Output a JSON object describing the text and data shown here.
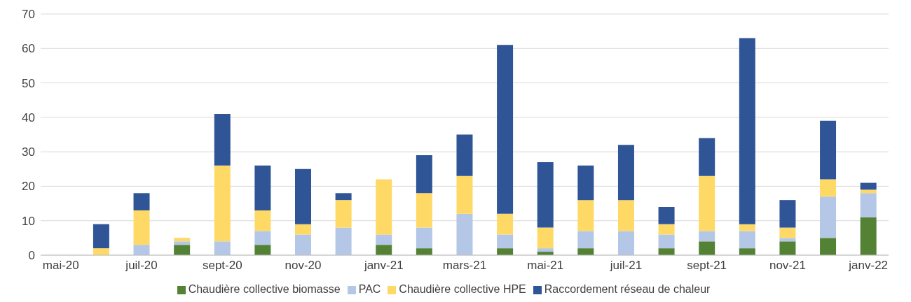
{
  "chart_data": {
    "type": "bar",
    "stacked": true,
    "categories": [
      "mai-20",
      null,
      "juil-20",
      null,
      "sept-20",
      null,
      "nov-20",
      null,
      "janv-21",
      null,
      "mars-21",
      null,
      "mai-21",
      null,
      "juil-21",
      null,
      "sept-21",
      null,
      "nov-21",
      null,
      "janv-22"
    ],
    "series": [
      {
        "name": "Chaudière collective biomasse",
        "color": "#548235",
        "values": [
          0,
          0,
          0,
          3,
          0,
          3,
          0,
          0,
          3,
          2,
          0,
          2,
          1,
          2,
          0,
          2,
          4,
          2,
          4,
          5,
          11
        ]
      },
      {
        "name": "PAC",
        "color": "#b4c7e7",
        "values": [
          0,
          0,
          3,
          1,
          4,
          4,
          6,
          8,
          3,
          6,
          12,
          4,
          1,
          5,
          7,
          4,
          3,
          5,
          1,
          12,
          7
        ]
      },
      {
        "name": "Chaudière collective HPE",
        "color": "#ffd966",
        "values": [
          0,
          2,
          10,
          1,
          22,
          6,
          3,
          8,
          16,
          10,
          11,
          6,
          6,
          9,
          9,
          3,
          16,
          2,
          3,
          5,
          1
        ]
      },
      {
        "name": "Raccordement réseau de chaleur",
        "color": "#2f5597",
        "values": [
          0,
          7,
          5,
          0,
          15,
          13,
          16,
          2,
          0,
          11,
          12,
          49,
          19,
          10,
          16,
          5,
          11,
          54,
          8,
          17,
          2
        ]
      }
    ],
    "ylim": [
      0,
      70
    ],
    "yticks": [
      0,
      10,
      20,
      30,
      40,
      50,
      60,
      70
    ],
    "grid": "y",
    "legend": "bottom"
  }
}
